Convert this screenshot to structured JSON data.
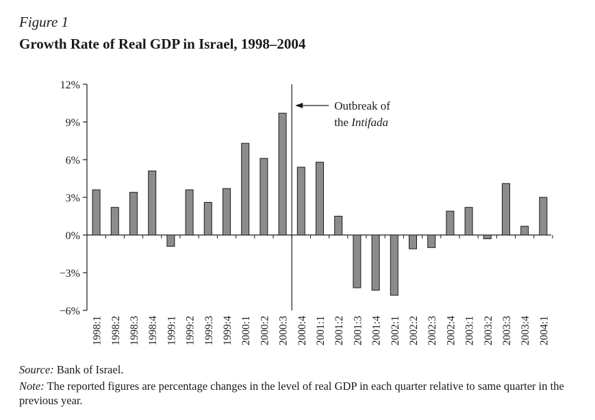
{
  "figure": {
    "label": "Figure 1",
    "title": "Growth Rate of Real GDP in Israel, 1998–2004"
  },
  "source": {
    "label": "Source:",
    "text": " Bank of Israel."
  },
  "note": {
    "label": "Note:",
    "text": " The reported figures are percentage changes in the level of real GDP in each quarter relative to same quarter in the previous year."
  },
  "chart_data": {
    "type": "bar",
    "categories": [
      "1998:1",
      "1998:2",
      "1998:3",
      "1998:4",
      "1999:1",
      "1999:2",
      "1999:3",
      "1999:4",
      "2000:1",
      "2000:2",
      "2000:3",
      "2000:4",
      "2001:1",
      "2001:2",
      "2001:3",
      "2001:4",
      "2002:1",
      "2002:2",
      "2002:3",
      "2002:4",
      "2003:1",
      "2003:2",
      "2003:3",
      "2003:4",
      "2004:1"
    ],
    "values": [
      3.6,
      2.2,
      3.4,
      5.1,
      -0.9,
      3.6,
      2.6,
      3.7,
      7.3,
      6.1,
      9.7,
      5.4,
      5.8,
      1.5,
      -4.2,
      -4.4,
      -4.8,
      -1.1,
      -1.0,
      1.9,
      2.2,
      -0.3,
      4.1,
      0.7,
      3.0
    ],
    "ylim": [
      -6,
      12
    ],
    "yticks": [
      -6,
      -3,
      0,
      3,
      6,
      9,
      12
    ],
    "ytick_labels": [
      "−6%",
      "−3%",
      "0%",
      "3%",
      "6%",
      "9%",
      "12%"
    ],
    "xlabel": "",
    "ylabel": "",
    "grid": false,
    "annotation": {
      "line1": "Outbreak of",
      "line2_prefix": "the ",
      "line2_italic": "Intifada",
      "at_category_boundary": "2000:3|2000:4"
    },
    "bar_fill": "#8c8c8c",
    "bar_stroke": "#1a1a1a"
  }
}
